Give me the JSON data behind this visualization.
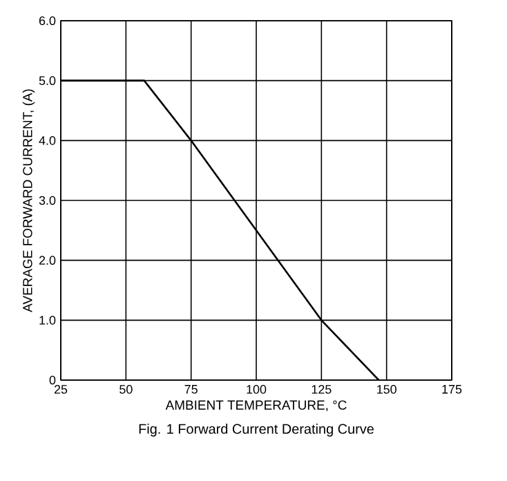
{
  "chart_data": {
    "type": "line",
    "title": "Fig. 1  Forward Current Derating Curve",
    "xlabel": "AMBIENT TEMPERATURE, °C",
    "ylabel": "AVERAGE FORWARD CURRENT, (A)",
    "x": [
      25,
      57,
      75,
      125,
      147
    ],
    "series": [
      {
        "color": "#000000",
        "values": [
          5,
          5,
          4,
          1,
          0
        ]
      }
    ],
    "xlim": [
      25,
      175
    ],
    "xticks": [
      25,
      50,
      75,
      100,
      125,
      150,
      175
    ],
    "ylim": [
      0,
      6
    ],
    "yticks": [
      0,
      {
        "value": 1,
        "label": "1.0"
      },
      {
        "value": 2,
        "label": "2.0"
      },
      {
        "value": 3,
        "label": "3.0"
      },
      {
        "value": 4,
        "label": "4.0"
      },
      {
        "value": 5,
        "label": "5.0"
      },
      {
        "value": 6,
        "label": "6.0"
      }
    ],
    "grid": true,
    "marker": "none",
    "line_style": "solid"
  }
}
